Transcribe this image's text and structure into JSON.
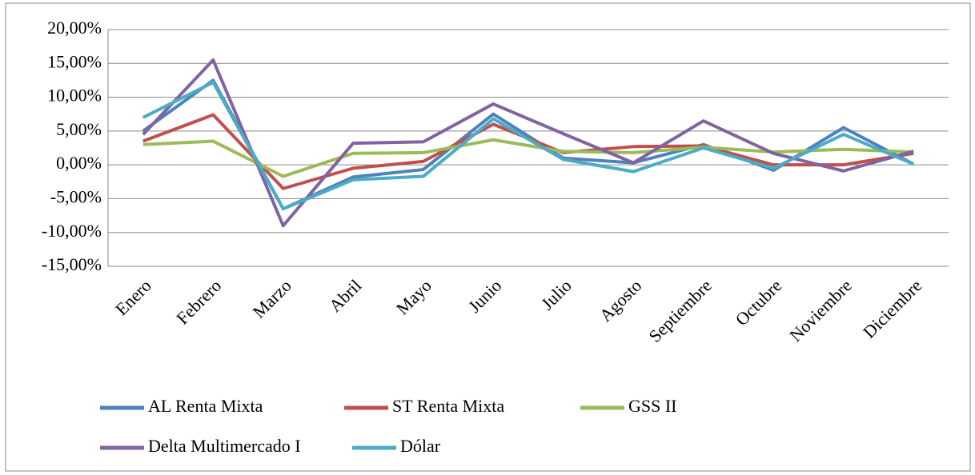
{
  "chart_data": {
    "type": "line",
    "categories": [
      "Enero",
      "Febrero",
      "Marzo",
      "Abril",
      "Mayo",
      "Junio",
      "Julio",
      "Agosto",
      "Septiembre",
      "Octubre",
      "Noviembre",
      "Diciembre"
    ],
    "series": [
      {
        "name": "AL Renta Mixta",
        "color": "#4f81bd",
        "values": [
          5.0,
          12.5,
          -6.5,
          -1.8,
          -0.7,
          7.5,
          1.0,
          0.3,
          3.0,
          -0.8,
          5.5,
          0.1
        ]
      },
      {
        "name": "ST Renta Mixta",
        "color": "#c0504d",
        "values": [
          3.5,
          7.4,
          -3.5,
          -0.5,
          0.5,
          6.0,
          1.8,
          2.7,
          2.8,
          0.0,
          0.0,
          1.7
        ]
      },
      {
        "name": "GSS II",
        "color": "#9bbb59",
        "values": [
          3.0,
          3.5,
          -1.7,
          1.7,
          1.8,
          3.7,
          2.0,
          1.8,
          2.6,
          1.9,
          2.3,
          1.9
        ]
      },
      {
        "name": "Delta Multimercado I",
        "color": "#8064a2",
        "values": [
          4.5,
          15.5,
          -9.0,
          3.2,
          3.4,
          9.0,
          4.6,
          0.3,
          6.5,
          1.7,
          -0.9,
          2.0
        ]
      },
      {
        "name": "Dólar",
        "color": "#4bacc6",
        "values": [
          7.0,
          12.2,
          -6.5,
          -2.2,
          -1.7,
          6.8,
          0.8,
          -1.0,
          2.5,
          -0.5,
          4.5,
          0.1
        ]
      }
    ],
    "ylim": [
      -15,
      20
    ],
    "yticks": [
      {
        "value": -15,
        "label": "-15,00%"
      },
      {
        "value": -10,
        "label": "-10,00%"
      },
      {
        "value": -5,
        "label": "-5,00%"
      },
      {
        "value": 0,
        "label": "0,00%"
      },
      {
        "value": 5,
        "label": "5,00%"
      },
      {
        "value": 10,
        "label": "10,00%"
      },
      {
        "value": 15,
        "label": "15,00%"
      },
      {
        "value": 20,
        "label": "20,00%"
      }
    ],
    "grid": true,
    "legend": "bottom"
  }
}
